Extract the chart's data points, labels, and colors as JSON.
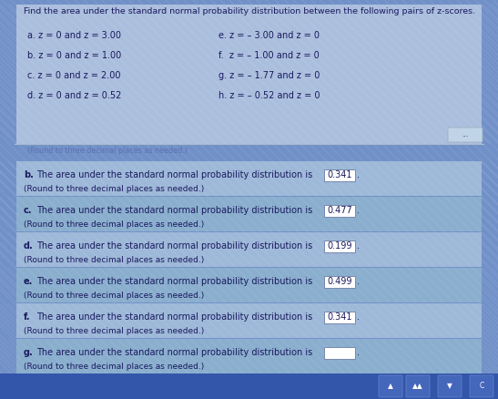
{
  "bg_color": "#7090c8",
  "top_panel_color": "#aabedd",
  "answer_row_colors": [
    "#9db8d8",
    "#8aaece",
    "#9db8d8",
    "#8aaece",
    "#9db8d8",
    "#8aaece"
  ],
  "text_color": "#1a1a5e",
  "title": "Find the area under the standard normal probability distribution between the following pairs of z-scores.",
  "problems_left": [
    "a. z = 0 and z = 3.00",
    "b. z = 0 and z = 1.00",
    "c. z = 0 and z = 2.00",
    "d. z = 0 and z = 0.52"
  ],
  "problems_right": [
    "e. z = – 3.00 and z = 0",
    "f.  z = – 1.00 and z = 0",
    "g. z = – 1.77 and z = 0",
    "h. z = – 0.52 and z = 0"
  ],
  "answers": [
    {
      "label": "b",
      "text": "The area under the standard normal probability distribution is ",
      "value": "0.341"
    },
    {
      "label": "c",
      "text": "The area under the standard normal probability distribution is ",
      "value": "0.477"
    },
    {
      "label": "d",
      "text": "The area under the standard normal probability distribution is ",
      "value": "0.199"
    },
    {
      "label": "e",
      "text": "The area under the standard normal probability distribution is ",
      "value": "0.499"
    },
    {
      "label": "f",
      "text": "The area under the standard normal probability distribution is ",
      "value": "0.341"
    },
    {
      "label": "g",
      "text": "The area under the standard normal probability distribution is ",
      "value": ""
    }
  ],
  "round_note": "(Round to three decimal places as needed.)",
  "faded_text": "(Round to three decimal places as needed.)",
  "ellipsis_text": "...",
  "sep_line_color": "#aabbcc",
  "nav_bar_color": "#3355aa",
  "nav_btn_color": "#4466bb"
}
